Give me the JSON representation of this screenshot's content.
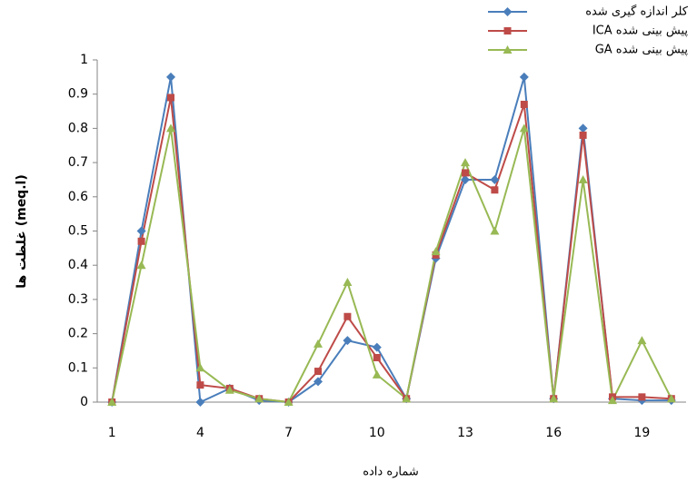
{
  "chart_data": {
    "type": "line",
    "x_label": "شماره داده",
    "y_label": "غلظت ها (meq.l)",
    "categories": [
      1,
      null,
      null,
      4,
      null,
      null,
      7,
      null,
      null,
      10,
      null,
      null,
      13,
      null,
      null,
      16,
      null,
      null,
      19,
      null
    ],
    "ylim": [
      0,
      1
    ],
    "yticks": [
      0,
      0.1,
      0.2,
      0.3,
      0.4,
      0.5,
      0.6,
      0.7,
      0.8,
      0.9,
      1
    ],
    "grid": false,
    "legend": "upper right",
    "series": [
      {
        "name": "کلر اندازه گیری شده",
        "color": "#4a7ebb",
        "marker": "diamond",
        "values": [
          0,
          0.5,
          0.95,
          0,
          0.04,
          0.005,
          0,
          0.06,
          0.18,
          0.16,
          0.01,
          0.42,
          0.65,
          0.65,
          0.95,
          0.01,
          0.8,
          0.01,
          0.005,
          0.005
        ]
      },
      {
        "name": "پیش بینی شده ICA",
        "color": "#be4b48",
        "marker": "square",
        "values": [
          0,
          0.47,
          0.89,
          0.05,
          0.04,
          0.01,
          0,
          0.09,
          0.25,
          0.13,
          0.01,
          0.43,
          0.67,
          0.62,
          0.87,
          0.01,
          0.78,
          0.015,
          0.015,
          0.01
        ]
      },
      {
        "name": "پیش بینی شده GA",
        "color": "#98b954",
        "marker": "triangle",
        "values": [
          0,
          0.4,
          0.8,
          0.1,
          0.035,
          0.01,
          0,
          0.17,
          0.35,
          0.08,
          0.01,
          0.44,
          0.7,
          0.5,
          0.8,
          0.01,
          0.65,
          0.005,
          0.18,
          0.01
        ]
      }
    ]
  }
}
